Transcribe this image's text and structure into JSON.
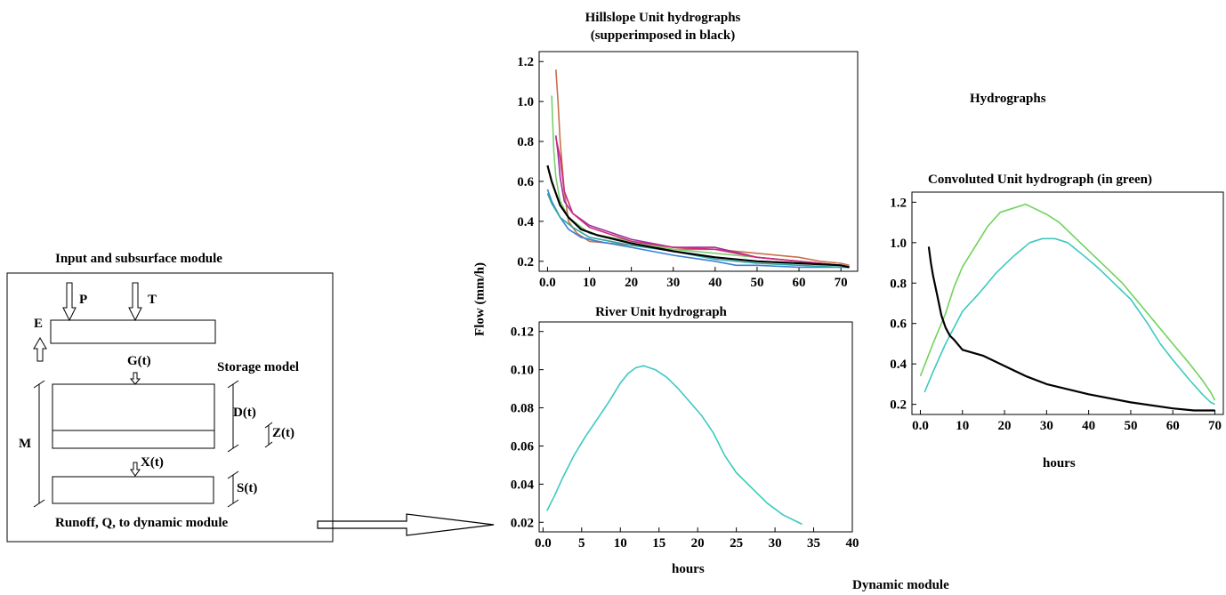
{
  "input_module": {
    "title": "Input and subsurface module",
    "labels": {
      "p": "P",
      "t": "T",
      "e": "E",
      "g": "G(t)",
      "storage": "Storage model",
      "d": "D(t)",
      "z": "Z(t)",
      "m": "M",
      "x": "X(t)",
      "s": "S(t)"
    },
    "runoff": "Runoff, Q, to dynamic module"
  },
  "hydrographs_title": "Hydrographs",
  "dynamic_module_label": "Dynamic module",
  "shared_ylabel": "Flow (mm/h)",
  "chart_data": [
    {
      "type": "line",
      "title": "Hillslope Unit hydrographs",
      "subtitle": "(supperimposed in black)",
      "xlim": [
        -2,
        74
      ],
      "ylim": [
        0.15,
        1.25
      ],
      "xticks": [
        0,
        10,
        20,
        30,
        40,
        50,
        60,
        70
      ],
      "xtick_labels": [
        "0.0",
        "10",
        "20",
        "30",
        "40",
        "50",
        "60",
        "70"
      ],
      "yticks": [
        0.2,
        0.4,
        0.6,
        0.8,
        1.0,
        1.2
      ],
      "ytick_labels": [
        "0.2",
        "0.4",
        "0.6",
        "0.8",
        "1.0",
        "1.2"
      ],
      "series": [
        {
          "color": "#c8704a",
          "x": [
            2,
            2.5,
            3,
            4,
            5,
            7,
            10,
            15,
            20,
            30,
            40,
            50,
            60,
            65,
            70,
            72
          ],
          "y": [
            1.16,
            1.0,
            0.8,
            0.55,
            0.4,
            0.34,
            0.3,
            0.29,
            0.28,
            0.26,
            0.26,
            0.24,
            0.22,
            0.2,
            0.19,
            0.18
          ]
        },
        {
          "color": "#7ad070",
          "x": [
            1,
            1.5,
            2,
            3,
            5,
            10,
            20,
            30,
            40,
            50,
            60,
            70,
            72
          ],
          "y": [
            1.03,
            0.75,
            0.62,
            0.5,
            0.42,
            0.34,
            0.3,
            0.26,
            0.24,
            0.22,
            0.2,
            0.18,
            0.17
          ]
        },
        {
          "color": "#9b2f9e",
          "x": [
            2,
            2.5,
            3,
            4,
            6,
            10,
            20,
            30,
            40,
            50,
            60,
            70,
            72
          ],
          "y": [
            0.83,
            0.74,
            0.62,
            0.5,
            0.44,
            0.38,
            0.31,
            0.27,
            0.27,
            0.22,
            0.2,
            0.18,
            0.17
          ]
        },
        {
          "color": "#d02a7a",
          "x": [
            2,
            3,
            4,
            6,
            10,
            20,
            30,
            40,
            50,
            60,
            70,
            72
          ],
          "y": [
            0.82,
            0.72,
            0.55,
            0.44,
            0.37,
            0.3,
            0.27,
            0.26,
            0.22,
            0.2,
            0.18,
            0.17
          ]
        },
        {
          "color": "#3a7fd6",
          "x": [
            0,
            1,
            3,
            5,
            8,
            12,
            20,
            30,
            40,
            45,
            50,
            60,
            70,
            72
          ],
          "y": [
            0.56,
            0.5,
            0.42,
            0.36,
            0.32,
            0.3,
            0.27,
            0.23,
            0.2,
            0.18,
            0.18,
            0.17,
            0.17,
            0.17
          ]
        },
        {
          "color": "#2fa7a0",
          "x": [
            0,
            1,
            3,
            6,
            10,
            20,
            30,
            40,
            50,
            60,
            70,
            72
          ],
          "y": [
            0.54,
            0.49,
            0.42,
            0.37,
            0.32,
            0.28,
            0.25,
            0.21,
            0.19,
            0.18,
            0.17,
            0.17
          ]
        },
        {
          "color": "#000000",
          "x": [
            0,
            1,
            2,
            3,
            5,
            8,
            12,
            20,
            30,
            40,
            50,
            60,
            70,
            72
          ],
          "y": [
            0.68,
            0.6,
            0.54,
            0.48,
            0.42,
            0.36,
            0.33,
            0.29,
            0.25,
            0.22,
            0.2,
            0.19,
            0.18,
            0.17
          ]
        }
      ]
    },
    {
      "type": "line",
      "title": "River Unit hydrograph",
      "xlabel": "hours",
      "xlim": [
        -0.5,
        40
      ],
      "ylim": [
        0.015,
        0.125
      ],
      "xticks": [
        0,
        5,
        10,
        15,
        20,
        25,
        30,
        35,
        40
      ],
      "xtick_labels": [
        "0.0",
        "5",
        "10",
        "15",
        "20",
        "25",
        "30",
        "35",
        "40"
      ],
      "yticks": [
        0.02,
        0.04,
        0.06,
        0.08,
        0.1,
        0.12
      ],
      "ytick_labels": [
        "0.02",
        "0.04",
        "0.06",
        "0.08",
        "0.10",
        "0.12"
      ],
      "series": [
        {
          "color": "#3cc9c0",
          "x": [
            0.5,
            1.5,
            2.5,
            4,
            5.5,
            7,
            8.5,
            10,
            11,
            12,
            13,
            14.5,
            16,
            17.5,
            19,
            20.5,
            22,
            23.5,
            25,
            27,
            29,
            31,
            32.5,
            33.5
          ],
          "y": [
            0.026,
            0.034,
            0.043,
            0.055,
            0.065,
            0.074,
            0.083,
            0.093,
            0.098,
            0.101,
            0.102,
            0.1,
            0.096,
            0.09,
            0.083,
            0.076,
            0.067,
            0.055,
            0.046,
            0.038,
            0.03,
            0.024,
            0.021,
            0.019
          ]
        }
      ]
    },
    {
      "type": "line",
      "title": "Convoluted Unit hydrograph (in green)",
      "xlabel": "hours",
      "xlim": [
        -2,
        72
      ],
      "ylim": [
        0.15,
        1.25
      ],
      "xticks": [
        0,
        10,
        20,
        30,
        40,
        50,
        60,
        70
      ],
      "xtick_labels": [
        "0.0",
        "10",
        "20",
        "30",
        "40",
        "50",
        "60",
        "70"
      ],
      "yticks": [
        0.2,
        0.4,
        0.6,
        0.8,
        1.0,
        1.2
      ],
      "ytick_labels": [
        "0.2",
        "0.4",
        "0.6",
        "0.8",
        "1.0",
        "1.2"
      ],
      "series": [
        {
          "color": "#6fd35a",
          "x": [
            0,
            3,
            6,
            8,
            10,
            13,
            16,
            19,
            22,
            25,
            27,
            30,
            33,
            36,
            40,
            44,
            48,
            52,
            56,
            60,
            64,
            67,
            69,
            70
          ],
          "y": [
            0.34,
            0.5,
            0.65,
            0.78,
            0.88,
            0.98,
            1.08,
            1.15,
            1.17,
            1.19,
            1.17,
            1.14,
            1.1,
            1.04,
            0.96,
            0.88,
            0.8,
            0.7,
            0.6,
            0.5,
            0.4,
            0.32,
            0.26,
            0.22
          ]
        },
        {
          "color": "#3cc9c0",
          "x": [
            1,
            3,
            6,
            10,
            14,
            18,
            22,
            26,
            29,
            32,
            35,
            38,
            42,
            46,
            50,
            54,
            57,
            60,
            64,
            67,
            69,
            70
          ],
          "y": [
            0.26,
            0.36,
            0.5,
            0.66,
            0.75,
            0.85,
            0.93,
            1.0,
            1.02,
            1.02,
            1.0,
            0.95,
            0.88,
            0.8,
            0.72,
            0.6,
            0.5,
            0.42,
            0.32,
            0.25,
            0.21,
            0.2
          ]
        },
        {
          "color": "#000000",
          "x": [
            2,
            2.5,
            3,
            4,
            5,
            6,
            7,
            8,
            10,
            15,
            20,
            25,
            30,
            40,
            50,
            60,
            65,
            70
          ],
          "y": [
            0.98,
            0.9,
            0.84,
            0.74,
            0.64,
            0.58,
            0.54,
            0.52,
            0.47,
            0.44,
            0.39,
            0.34,
            0.3,
            0.25,
            0.21,
            0.18,
            0.17,
            0.17
          ]
        }
      ]
    }
  ]
}
